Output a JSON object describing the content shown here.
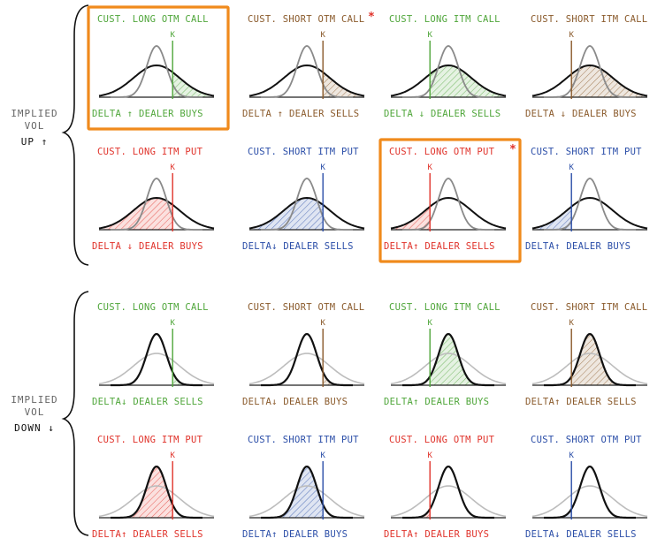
{
  "colors": {
    "green": "#4fa63a",
    "brown": "#8a5a2b",
    "red": "#e0332b",
    "blue": "#2b4ea8",
    "highlight": "#f08a1c",
    "star": "#e0332b",
    "wide_up": "#111111",
    "narrow_up": "#8a8a8a",
    "narrow_down": "#111111",
    "wide_down": "#bdbdbd"
  },
  "groups": [
    {
      "label_line1": "IMPLIED",
      "label_line2": "VOL",
      "label_line3": "UP ↑"
    },
    {
      "label_line1": "IMPLIED",
      "label_line2": "VOL",
      "label_line3": "DOWN ↓"
    }
  ],
  "strike_label": "K",
  "star_symbol": "*",
  "panels": [
    {
      "title": "CUST. LONG OTM CALL",
      "footer": "DELTA ↑  DEALER BUYS",
      "color": "green",
      "k": 0.64,
      "shade": "right",
      "vol": "up",
      "highlight": true,
      "star": false
    },
    {
      "title": "CUST. SHORT OTM CALL",
      "footer": "DELTA ↑  DEALER SELLS",
      "color": "brown",
      "k": 0.64,
      "shade": "right",
      "vol": "up",
      "highlight": false,
      "star": true
    },
    {
      "title": "CUST. LONG ITM CALL",
      "footer": "DELTA ↓  DEALER SELLS",
      "color": "green",
      "k": 0.34,
      "shade": "right",
      "vol": "up",
      "highlight": false,
      "star": false
    },
    {
      "title": "CUST. SHORT ITM CALL",
      "footer": "DELTA ↓  DEALER BUYS",
      "color": "brown",
      "k": 0.34,
      "shade": "right",
      "vol": "up",
      "highlight": false,
      "star": false
    },
    {
      "title": "CUST. LONG ITM PUT",
      "footer": "DELTA ↓  DEALER BUYS",
      "color": "red",
      "k": 0.64,
      "shade": "left",
      "vol": "up",
      "highlight": false,
      "star": false
    },
    {
      "title": "CUST. SHORT ITM PUT",
      "footer": "DELTA↓  DEALER SELLS",
      "color": "blue",
      "k": 0.64,
      "shade": "left",
      "vol": "up",
      "highlight": false,
      "star": false
    },
    {
      "title": "CUST. LONG OTM PUT",
      "footer": "DELTA↑  DEALER SELLS",
      "color": "red",
      "k": 0.34,
      "shade": "left",
      "vol": "up",
      "highlight": true,
      "star": true
    },
    {
      "title": "CUST. SHORT ITM PUT",
      "footer": "DELTA↑  DEALER BUYS",
      "color": "blue",
      "k": 0.34,
      "shade": "left",
      "vol": "up",
      "highlight": false,
      "star": false
    },
    {
      "title": "CUST. LONG OTM CALL",
      "footer": "DELTA↓  DEALER SELLS",
      "color": "green",
      "k": 0.64,
      "shade": "right",
      "vol": "down",
      "highlight": false,
      "star": false
    },
    {
      "title": "CUST. SHORT OTM CALL",
      "footer": "DELTA↓  DEALER BUYS",
      "color": "brown",
      "k": 0.64,
      "shade": "right",
      "vol": "down",
      "highlight": false,
      "star": false
    },
    {
      "title": "CUST. LONG ITM CALL",
      "footer": "DELTA↑  DEALER BUYS",
      "color": "green",
      "k": 0.34,
      "shade": "right",
      "vol": "down",
      "highlight": false,
      "star": false
    },
    {
      "title": "CUST. SHORT ITM CALL",
      "footer": "DELTA↑  DEALER SELLS",
      "color": "brown",
      "k": 0.34,
      "shade": "right",
      "vol": "down",
      "highlight": false,
      "star": false
    },
    {
      "title": "CUST. LONG ITM PUT",
      "footer": "DELTA↑  DEALER SELLS",
      "color": "red",
      "k": 0.64,
      "shade": "left",
      "vol": "down",
      "highlight": false,
      "star": false
    },
    {
      "title": "CUST. SHORT ITM PUT",
      "footer": "DELTA↑  DEALER BUYS",
      "color": "blue",
      "k": 0.64,
      "shade": "left",
      "vol": "down",
      "highlight": false,
      "star": false
    },
    {
      "title": "CUST. LONG OTM PUT",
      "footer": "DELTA↑  DEALER BUYS",
      "color": "red",
      "k": 0.34,
      "shade": "left",
      "vol": "down",
      "highlight": false,
      "star": false
    },
    {
      "title": "CUST. SHORT OTM PUT",
      "footer": "DELTA↓   DEALER SELLS",
      "color": "blue",
      "k": 0.34,
      "shade": "left",
      "vol": "down",
      "highlight": false,
      "star": false
    }
  ]
}
